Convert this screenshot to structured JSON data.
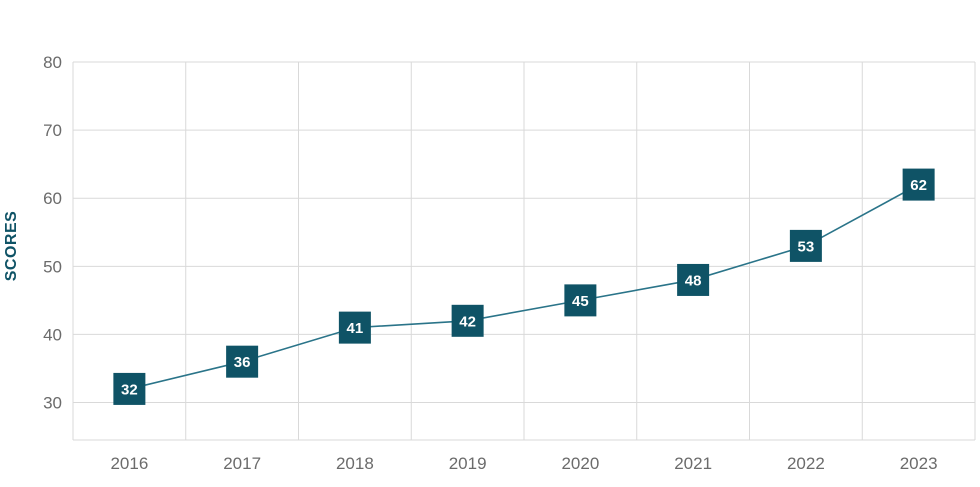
{
  "chart_data": {
    "type": "line",
    "title": "",
    "xlabel": "",
    "ylabel": "SCORES",
    "categories": [
      "2016",
      "2017",
      "2018",
      "2019",
      "2020",
      "2021",
      "2022",
      "2023"
    ],
    "values": [
      32,
      36,
      41,
      42,
      45,
      48,
      53,
      62
    ],
    "ylim": [
      24.5,
      80
    ],
    "yticks": [
      30,
      40,
      50,
      60,
      70,
      80
    ],
    "grid": true,
    "colors": {
      "line": "#2a7489",
      "marker": "#0f5366",
      "grid": "#d9d9d9",
      "axis_label": "#0f5366"
    }
  }
}
